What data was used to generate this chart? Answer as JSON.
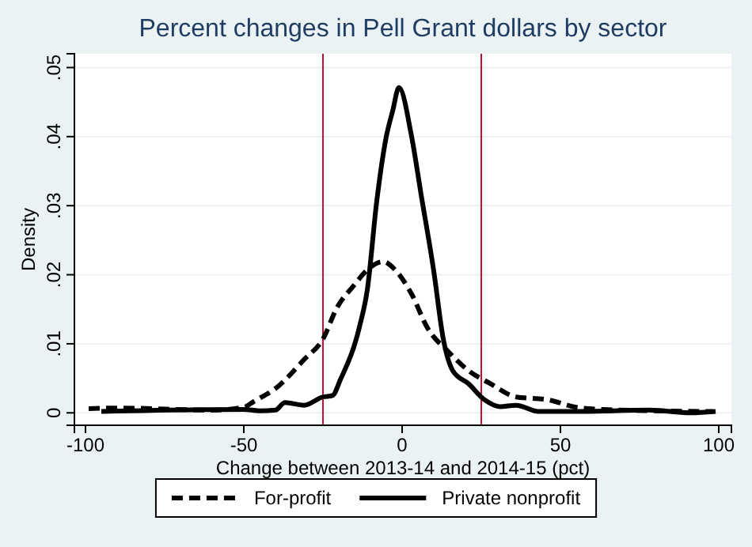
{
  "chart_data": {
    "type": "line",
    "title": "Percent changes in Pell Grant dollars by sector",
    "xlabel": "Change between 2013-14 and 2014-15 (pct)",
    "ylabel": "Density",
    "xlim": [
      -103.5,
      104
    ],
    "xticks": [
      -100,
      -50,
      0,
      50,
      100
    ],
    "ylim": [
      -0.0018,
      0.052
    ],
    "yticks": [
      {
        "value": 0,
        "label": "0"
      },
      {
        "value": 0.01,
        "label": ".01"
      },
      {
        "value": 0.02,
        "label": ".02"
      },
      {
        "value": 0.03,
        "label": ".03"
      },
      {
        "value": 0.04,
        "label": ".04"
      },
      {
        "value": 0.05,
        "label": ".05"
      }
    ],
    "grid": "y",
    "legend": "bottom",
    "marker": "none",
    "ref_lines": [
      {
        "axis": "x",
        "value": -25,
        "color": "#c8102e"
      },
      {
        "axis": "x",
        "value": 25,
        "color": "#c8102e"
      }
    ],
    "series": [
      {
        "name": "For-profit",
        "color": "#000000",
        "line_style": "dashed",
        "x": [
          -99,
          -90,
          -60,
          -50,
          -47,
          -39,
          -31,
          -25,
          -20.5,
          -15.5,
          -10.5,
          -6,
          -2,
          3,
          8,
          14.5,
          21,
          28,
          36,
          46,
          55,
          63,
          80,
          98
        ],
        "values": [
          0.0006,
          0.0007,
          0.0004,
          0.0008,
          0.0016,
          0.0039,
          0.0077,
          0.0107,
          0.0153,
          0.0183,
          0.0209,
          0.0219,
          0.0206,
          0.0172,
          0.0123,
          0.0089,
          0.0061,
          0.0042,
          0.0023,
          0.0019,
          0.0008,
          0.0005,
          0.0003,
          0.0002
        ]
      },
      {
        "name": "Private nonprofit",
        "color": "#000000",
        "line_style": "solid",
        "x": [
          -95,
          -50,
          -45,
          -40,
          -37,
          -31,
          -25,
          -22,
          -19.5,
          -13.5,
          -11,
          -8,
          -5,
          -3,
          -1,
          3,
          6,
          10,
          13,
          16,
          21,
          26,
          31,
          36,
          43,
          55,
          78,
          91,
          99
        ],
        "values": [
          0.0002,
          0.0005,
          0.0003,
          0.0004,
          0.0015,
          0.0011,
          0.0023,
          0.0025,
          0.0048,
          0.0124,
          0.0178,
          0.0307,
          0.04,
          0.0437,
          0.0471,
          0.04,
          0.0316,
          0.0205,
          0.0107,
          0.0061,
          0.0042,
          0.0019,
          0.0009,
          0.0011,
          0.0002,
          0.0002,
          0.0004,
          0.0,
          0.0002
        ]
      }
    ]
  }
}
